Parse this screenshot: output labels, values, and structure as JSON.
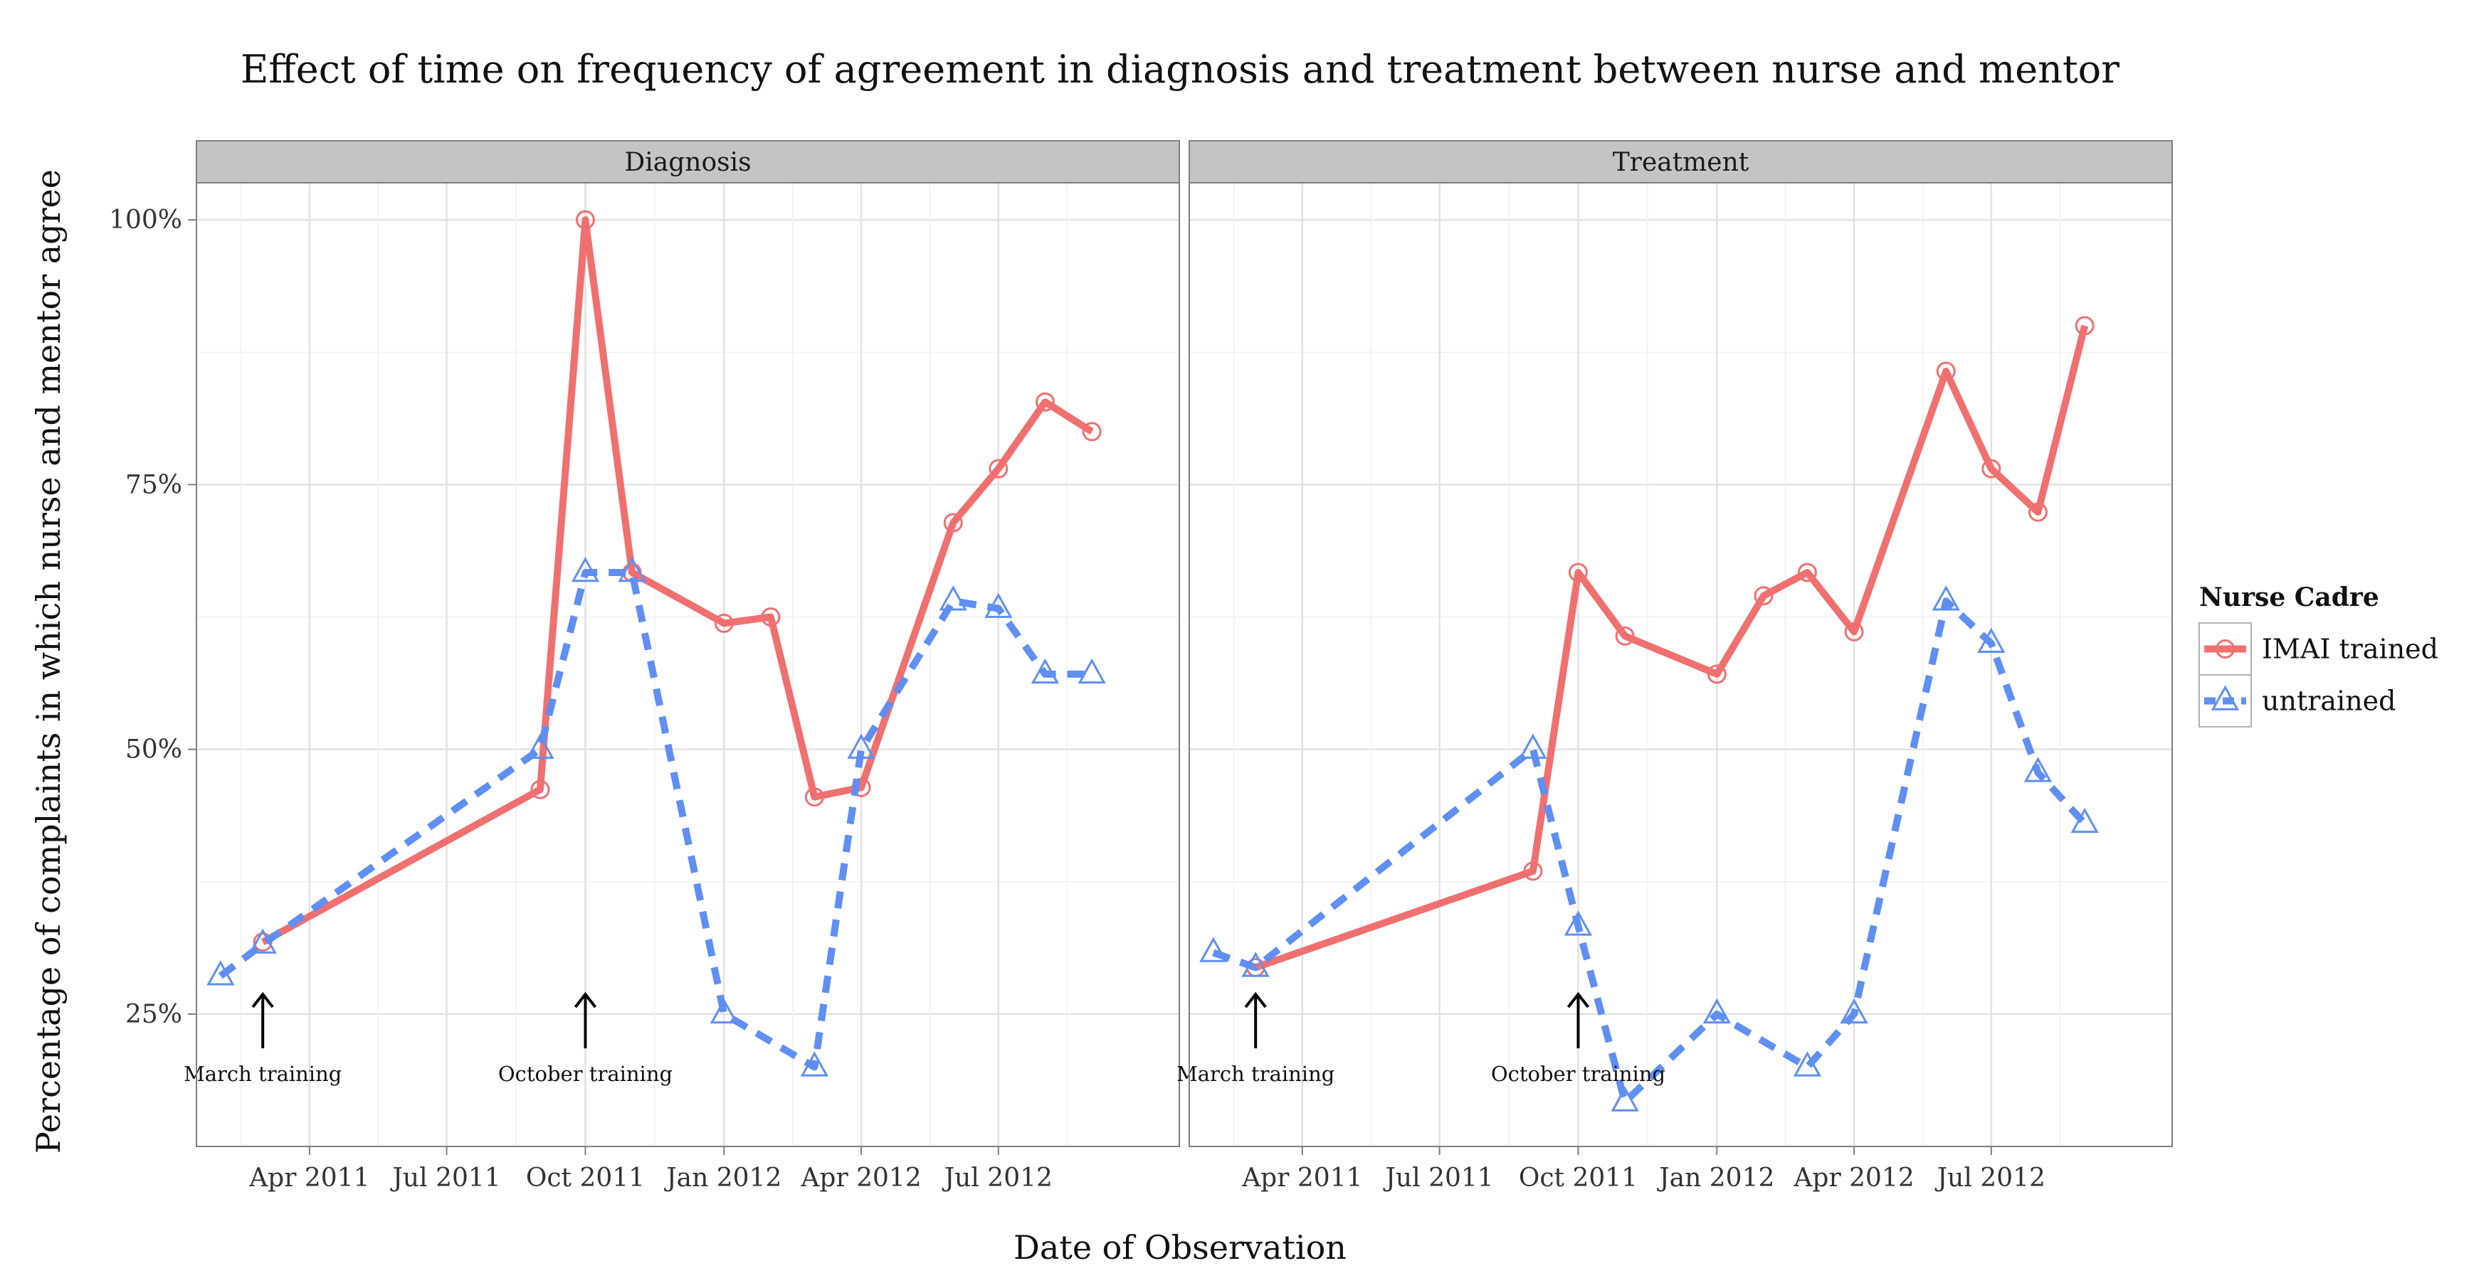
{
  "chart_data": {
    "type": "line",
    "title": "Effect of time on frequency of agreement in diagnosis and treatment between nurse and mentor",
    "xlabel": "Date of Observation",
    "ylabel": "Percentage of complaints in which nurse and mentor agree",
    "x_ticks": [
      "2011-04-01",
      "2011-07-01",
      "2011-10-01",
      "2012-01-01",
      "2012-04-01",
      "2012-07-01"
    ],
    "x_tick_labels": [
      "Apr 2011",
      "Jul 2011",
      "Oct 2011",
      "Jan 2012",
      "Apr 2012",
      "Jul 2012"
    ],
    "xlim": [
      "2011-01-16",
      "2012-10-29"
    ],
    "y_ticks": [
      25,
      50,
      75,
      100
    ],
    "y_tick_labels": [
      "25%",
      "50%",
      "75%",
      "100%"
    ],
    "ylim": [
      12.5,
      103.5
    ],
    "grid": true,
    "legend": {
      "title": "Nurse Cadre",
      "position": "right",
      "entries": [
        {
          "label": "IMAI trained",
          "color": "#F07070",
          "marker": "circle",
          "dash": "solid"
        },
        {
          "label": "untrained",
          "color": "#5F8FF2",
          "marker": "triangle",
          "dash": "dashed"
        }
      ]
    },
    "panels": [
      {
        "label": "Diagnosis",
        "series": [
          {
            "name": "IMAI trained",
            "points": [
              {
                "x": "2011-03-01",
                "y": 31.8
              },
              {
                "x": "2011-09-01",
                "y": 46.2
              },
              {
                "x": "2011-10-01",
                "y": 100.0
              },
              {
                "x": "2011-11-01",
                "y": 66.7
              },
              {
                "x": "2012-01-01",
                "y": 61.9
              },
              {
                "x": "2012-02-01",
                "y": 62.5
              },
              {
                "x": "2012-03-01",
                "y": 45.5
              },
              {
                "x": "2012-04-01",
                "y": 46.4
              },
              {
                "x": "2012-06-01",
                "y": 71.4
              },
              {
                "x": "2012-07-01",
                "y": 76.5
              },
              {
                "x": "2012-08-01",
                "y": 82.8
              },
              {
                "x": "2012-09-01",
                "y": 80.0
              }
            ]
          },
          {
            "name": "untrained",
            "points": [
              {
                "x": "2011-02-01",
                "y": 28.6
              },
              {
                "x": "2011-03-01",
                "y": 31.6
              },
              {
                "x": "2011-09-01",
                "y": 50.0
              },
              {
                "x": "2011-10-01",
                "y": 66.7
              },
              {
                "x": "2011-11-01",
                "y": 66.7
              },
              {
                "x": "2012-01-01",
                "y": 25.0
              },
              {
                "x": "2012-03-01",
                "y": 20.0
              },
              {
                "x": "2012-04-01",
                "y": 50.0
              },
              {
                "x": "2012-06-01",
                "y": 64.0
              },
              {
                "x": "2012-07-01",
                "y": 63.3
              },
              {
                "x": "2012-08-01",
                "y": 57.1
              },
              {
                "x": "2012-09-01",
                "y": 57.1
              }
            ]
          }
        ],
        "annotations": [
          {
            "x": "2011-03-01",
            "label": "March training"
          },
          {
            "x": "2011-10-01",
            "label": "October training"
          }
        ]
      },
      {
        "label": "Treatment",
        "series": [
          {
            "name": "IMAI trained",
            "points": [
              {
                "x": "2011-03-01",
                "y": 29.4
              },
              {
                "x": "2011-09-01",
                "y": 38.5
              },
              {
                "x": "2011-10-01",
                "y": 66.7
              },
              {
                "x": "2011-11-01",
                "y": 60.7
              },
              {
                "x": "2012-01-01",
                "y": 57.1
              },
              {
                "x": "2012-02-01",
                "y": 64.5
              },
              {
                "x": "2012-03-01",
                "y": 66.7
              },
              {
                "x": "2012-04-01",
                "y": 61.1
              },
              {
                "x": "2012-06-01",
                "y": 85.7
              },
              {
                "x": "2012-07-01",
                "y": 76.5
              },
              {
                "x": "2012-08-01",
                "y": 72.4
              },
              {
                "x": "2012-09-01",
                "y": 90.0
              }
            ]
          },
          {
            "name": "untrained",
            "points": [
              {
                "x": "2011-02-01",
                "y": 30.8
              },
              {
                "x": "2011-03-01",
                "y": 29.4
              },
              {
                "x": "2011-09-01",
                "y": 50.0
              },
              {
                "x": "2011-10-01",
                "y": 33.3
              },
              {
                "x": "2011-11-01",
                "y": 16.7
              },
              {
                "x": "2012-01-01",
                "y": 25.0
              },
              {
                "x": "2012-03-01",
                "y": 20.0
              },
              {
                "x": "2012-04-01",
                "y": 25.0
              },
              {
                "x": "2012-06-01",
                "y": 64.0
              },
              {
                "x": "2012-07-01",
                "y": 60.0
              },
              {
                "x": "2012-08-01",
                "y": 47.8
              },
              {
                "x": "2012-09-01",
                "y": 43.0
              }
            ]
          }
        ],
        "annotations": [
          {
            "x": "2011-03-01",
            "label": "March training"
          },
          {
            "x": "2011-10-01",
            "label": "October training"
          }
        ]
      }
    ]
  }
}
